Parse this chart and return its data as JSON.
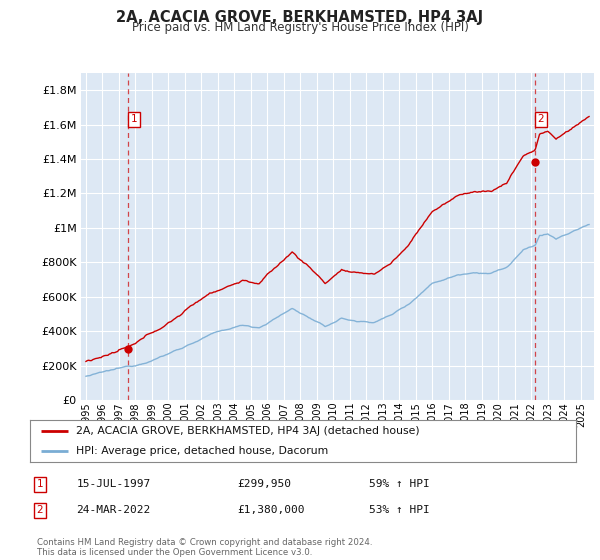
{
  "title": "2A, ACACIA GROVE, BERKHAMSTED, HP4 3AJ",
  "subtitle": "Price paid vs. HM Land Registry's House Price Index (HPI)",
  "legend_line1": "2A, ACACIA GROVE, BERKHAMSTED, HP4 3AJ (detached house)",
  "legend_line2": "HPI: Average price, detached house, Dacorum",
  "transaction1_date": "15-JUL-1997",
  "transaction1_price": "£299,950",
  "transaction1_hpi": "59% ↑ HPI",
  "transaction2_date": "24-MAR-2022",
  "transaction2_price": "£1,380,000",
  "transaction2_hpi": "53% ↑ HPI",
  "footer": "Contains HM Land Registry data © Crown copyright and database right 2024.\nThis data is licensed under the Open Government Licence v3.0.",
  "red_color": "#cc0000",
  "blue_color": "#7aadd4",
  "bg_color": "#dde8f4",
  "grid_color": "#ffffff",
  "ylim_min": 0,
  "ylim_max": 1900000,
  "yticks": [
    0,
    200000,
    400000,
    600000,
    800000,
    1000000,
    1200000,
    1400000,
    1600000,
    1800000
  ],
  "ytick_labels": [
    "£0",
    "£200K",
    "£400K",
    "£600K",
    "£800K",
    "£1M",
    "£1.2M",
    "£1.4M",
    "£1.6M",
    "£1.8M"
  ],
  "sale1_year": 1997.54,
  "sale1_price": 299950,
  "sale2_year": 2022.23,
  "sale2_price": 1380000,
  "xmin": 1994.7,
  "xmax": 2025.8
}
